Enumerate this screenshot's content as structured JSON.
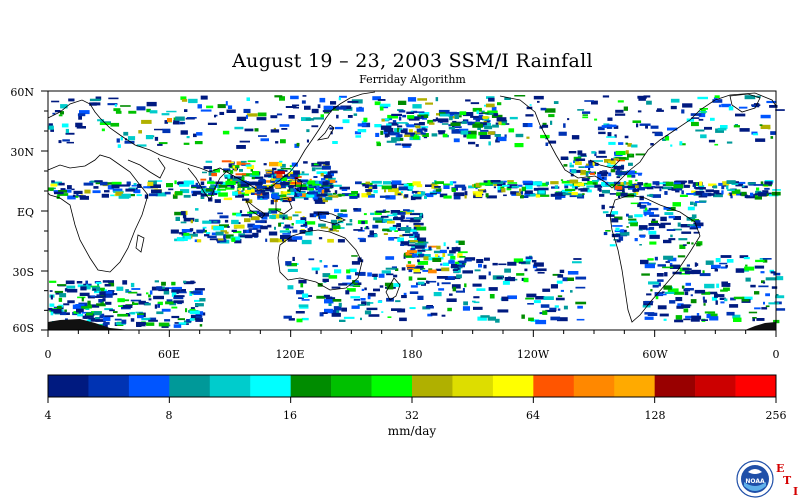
{
  "title": "August 19 – 23, 2003 SSM/I Rainfall",
  "subtitle": "Ferriday Algorithm",
  "lat_labels": [
    "60N",
    "30N",
    "EQ",
    "30S",
    "60S"
  ],
  "lon_labels": [
    "0",
    "60E",
    "120E",
    "180",
    "120W",
    "60W",
    "0"
  ],
  "colorbar": {
    "units": "mm/day",
    "tick_labels": [
      "4",
      "8",
      "16",
      "32",
      "64",
      "128",
      "256"
    ],
    "colors": [
      "#001a80",
      "#0033b3",
      "#0055ff",
      "#009999",
      "#00cccc",
      "#00ffff",
      "#008c00",
      "#00c000",
      "#00ff00",
      "#b0b000",
      "#dddd00",
      "#ffff00",
      "#ff5500",
      "#ff8800",
      "#ffaa00",
      "#990000",
      "#cc0000",
      "#ff0000"
    ]
  },
  "logo": {
    "icon": "noaa-logo-icon",
    "text": "NOAA"
  },
  "eti_letters": [
    "E",
    "T",
    "I"
  ],
  "map": {
    "projection": "equirectangular",
    "lon_range": [
      0,
      360
    ],
    "lat_range": [
      -60,
      60
    ]
  }
}
